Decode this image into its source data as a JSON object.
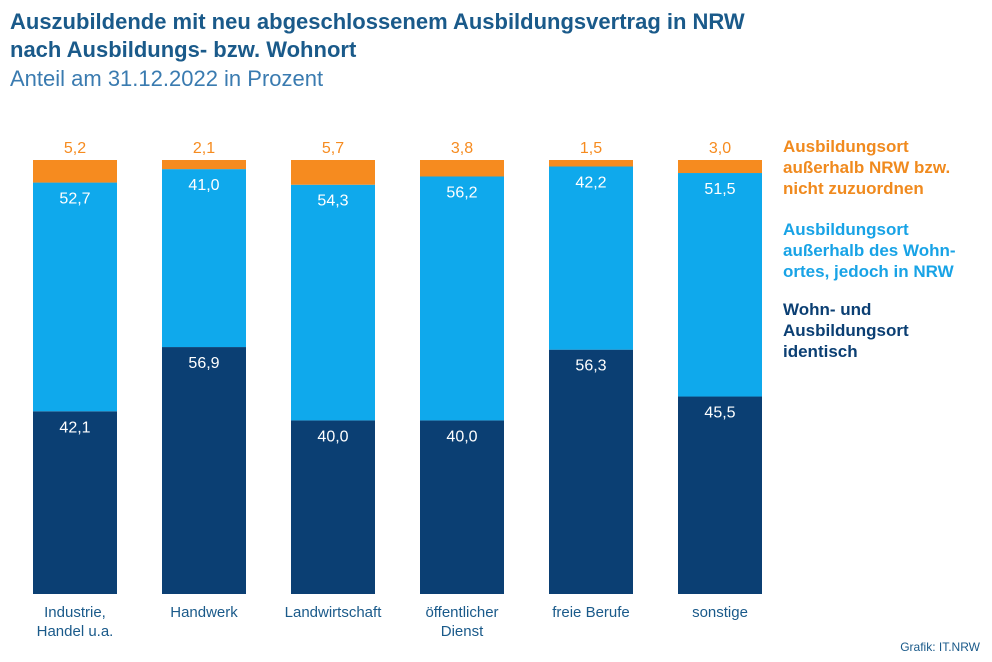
{
  "title_lines": [
    "Auszubildende mit neu abgeschlossenem Ausbildungsvertrag in NRW",
    "nach Ausbildungs- bzw. Wohnort"
  ],
  "subtitle": "Anteil am 31.12.2022 in Prozent",
  "credit": "Grafik: IT.NRW",
  "colors": {
    "identisch": "#0b3f73",
    "wohnort": "#0fa9ec",
    "ausserhalb": "#f68b1f",
    "text": "#1a5a8a"
  },
  "chart_data": {
    "type": "bar",
    "stacked": true,
    "ylim": [
      0,
      100
    ],
    "categories": [
      [
        "Industrie,",
        "Handel u.a."
      ],
      [
        "Handwerk"
      ],
      [
        "Landwirtschaft"
      ],
      [
        "öffentlicher",
        "Dienst"
      ],
      [
        "freie Berufe"
      ],
      [
        "sonstige"
      ]
    ],
    "series": [
      {
        "name_lines": [
          "Wohn- und",
          "Ausbildungsort",
          "identisch"
        ],
        "color": "#0b3f73",
        "label_color": "#ffffff",
        "values": [
          42.1,
          56.9,
          40.0,
          40.0,
          56.3,
          45.5
        ],
        "labels": [
          "42,1",
          "56,9",
          "40,0",
          "40,0",
          "56,3",
          "45,5"
        ]
      },
      {
        "name_lines": [
          "Ausbildungsort",
          "außerhalb des Wohn-",
          "ortes, jedoch in NRW"
        ],
        "color": "#0fa9ec",
        "label_color": "#ffffff",
        "values": [
          52.7,
          41.0,
          54.3,
          56.2,
          42.2,
          51.5
        ],
        "labels": [
          "52,7",
          "41,0",
          "54,3",
          "56,2",
          "42,2",
          "51,5"
        ]
      },
      {
        "name_lines": [
          "Ausbildungsort",
          "außerhalb NRW bzw.",
          "nicht zuzuordnen"
        ],
        "color": "#f68b1f",
        "label_color": "#f68b1f",
        "values": [
          5.2,
          2.1,
          5.7,
          3.8,
          1.5,
          3.0
        ],
        "labels": [
          "5,2",
          "2,1",
          "5,7",
          "3,8",
          "1,5",
          "3,0"
        ]
      }
    ],
    "legend_position": "right",
    "grid": false
  }
}
